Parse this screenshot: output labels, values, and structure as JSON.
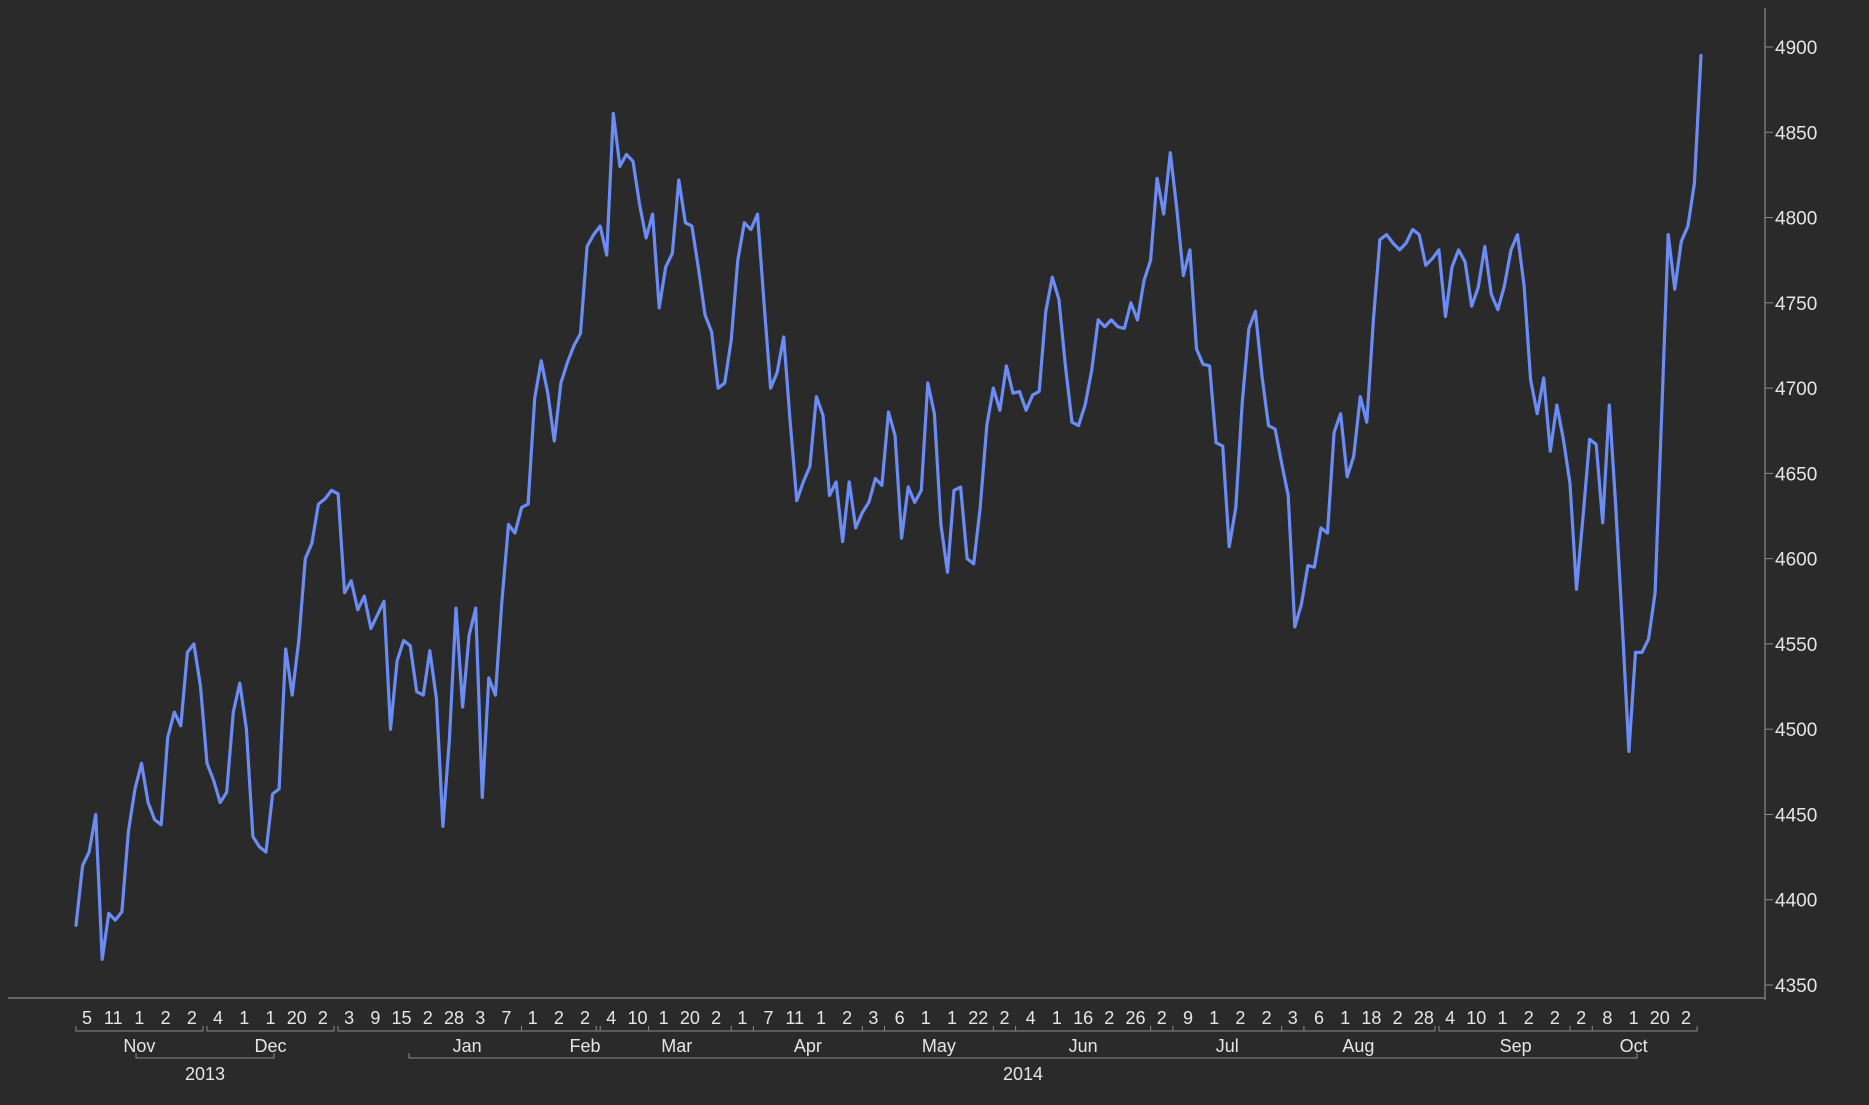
{
  "chart_data": {
    "type": "line",
    "title": "",
    "xlabel": "",
    "ylabel": "",
    "ylim": [
      4340,
      4915
    ],
    "y_ticks": [
      4350,
      4400,
      4450,
      4500,
      4550,
      4600,
      4650,
      4700,
      4750,
      4800,
      4850,
      4900
    ],
    "grid": false,
    "legend": "none",
    "colors": {
      "background": "#2a2a2a",
      "line": "#6b8cf5",
      "axis": "#8a8a8a",
      "text": "#e6e6e6"
    },
    "series": [
      {
        "values": [
          4385,
          4420,
          4428,
          4450,
          4365,
          4392,
          4388,
          4393,
          4440,
          4465,
          4480,
          4457,
          4447,
          4444,
          4495,
          4510,
          4502,
          4545,
          4550,
          4525,
          4480,
          4470,
          4457,
          4463,
          4510,
          4527,
          4500,
          4437,
          4431,
          4428,
          4462,
          4465,
          4547,
          4520,
          4552,
          4600,
          4609,
          4632,
          4635,
          4640,
          4638,
          4580,
          4587,
          4570,
          4578,
          4559,
          4567,
          4575,
          4500,
          4540,
          4552,
          4549,
          4522,
          4520,
          4546,
          4518,
          4443,
          4495,
          4571,
          4513,
          4555,
          4571,
          4460,
          4530,
          4520,
          4575,
          4620,
          4615,
          4630,
          4632,
          4694,
          4716,
          4697,
          4669,
          4703,
          4715,
          4725,
          4732,
          4783,
          4790,
          4795,
          4778,
          4861,
          4830,
          4837,
          4833,
          4808,
          4788,
          4802,
          4747,
          4771,
          4779,
          4822,
          4797,
          4795,
          4770,
          4743,
          4733,
          4700,
          4703,
          4728,
          4775,
          4797,
          4793,
          4802,
          4750,
          4700,
          4709,
          4730,
          4680,
          4634,
          4645,
          4654,
          4695,
          4684,
          4637,
          4645,
          4610,
          4645,
          4618,
          4627,
          4633,
          4647,
          4643,
          4686,
          4672,
          4612,
          4642,
          4633,
          4640,
          4703,
          4685,
          4620,
          4592,
          4640,
          4642,
          4600,
          4597,
          4630,
          4678,
          4700,
          4687,
          4713,
          4697,
          4698,
          4687,
          4696,
          4698,
          4745,
          4765,
          4752,
          4713,
          4680,
          4678,
          4690,
          4710,
          4740,
          4736,
          4740,
          4736,
          4735,
          4750,
          4740,
          4763,
          4775,
          4823,
          4802,
          4838,
          4805,
          4766,
          4781,
          4723,
          4714,
          4713,
          4668,
          4666,
          4607,
          4630,
          4692,
          4735,
          4745,
          4707,
          4678,
          4676,
          4656,
          4637,
          4560,
          4573,
          4596,
          4595,
          4618,
          4615,
          4674,
          4685,
          4648,
          4660,
          4695,
          4680,
          4740,
          4787,
          4790,
          4785,
          4781,
          4785,
          4793,
          4790,
          4772,
          4776,
          4781,
          4742,
          4771,
          4781,
          4774,
          4748,
          4759,
          4783,
          4755,
          4746,
          4760,
          4781,
          4790,
          4760,
          4705,
          4685,
          4706,
          4663,
          4690,
          4670,
          4644,
          4582,
          4625,
          4670,
          4667,
          4621,
          4690,
          4630,
          4560,
          4487,
          4545,
          4545,
          4553,
          4580,
          4685,
          4790,
          4758,
          4786,
          4795,
          4820,
          4895
        ]
      }
    ],
    "x_tick_labels": [
      "5",
      "11",
      "1",
      "2",
      "2",
      "4",
      "1",
      "1",
      "20",
      "2",
      "3",
      "9",
      "15",
      "2",
      "28",
      "3",
      "7",
      "1",
      "2",
      "2",
      "4",
      "10",
      "1",
      "20",
      "2",
      "1",
      "7",
      "11",
      "1",
      "2",
      "3",
      "6",
      "1",
      "1",
      "22",
      "2",
      "4",
      "1",
      "16",
      "2",
      "26",
      "2",
      "9",
      "1",
      "2",
      "2",
      "3",
      "6",
      "1",
      "18",
      "2",
      "28",
      "4",
      "10",
      "1",
      "2",
      "2",
      "2",
      "8",
      "1",
      "20",
      "2"
    ],
    "month_labels": [
      "Nov",
      "Dec",
      "Jan",
      "Feb",
      "Mar",
      "Apr",
      "May",
      "Jun",
      "Jul",
      "Aug",
      "Sep",
      "Oct"
    ],
    "year_labels": [
      "2013",
      "2014"
    ]
  }
}
